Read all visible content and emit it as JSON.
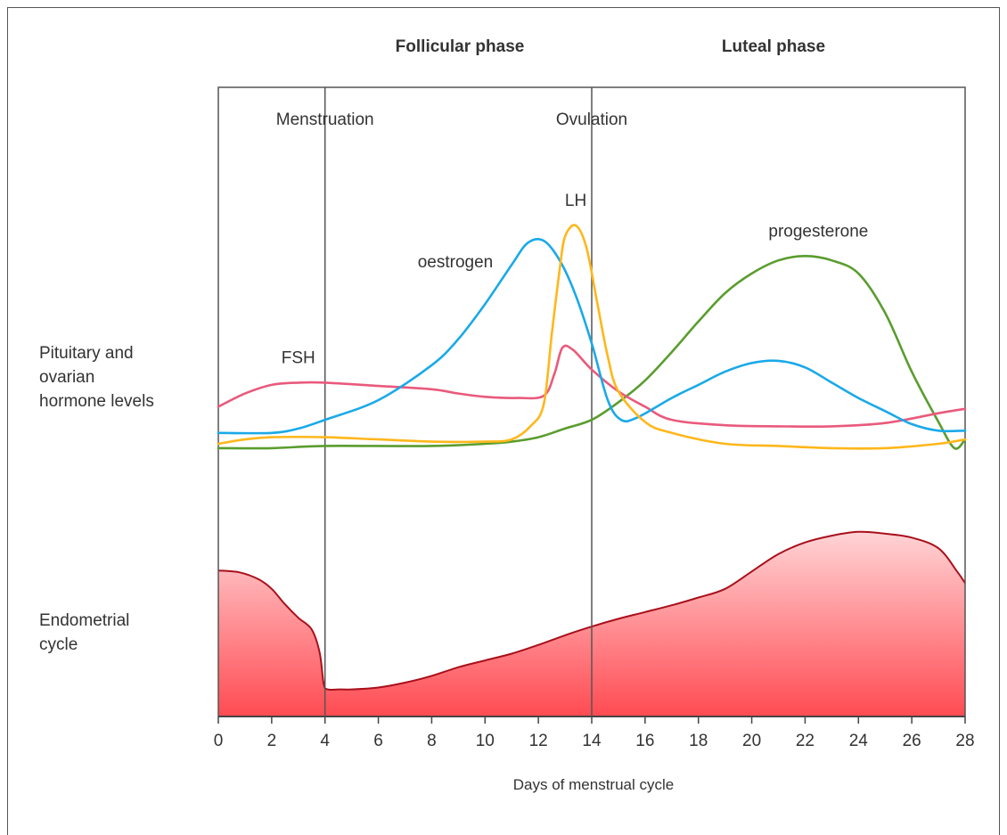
{
  "chart_data": {
    "type": "line",
    "xlabel": "Days of menstrual cycle",
    "xlim": [
      0,
      28
    ],
    "x_ticks": [
      0,
      2,
      4,
      6,
      8,
      10,
      12,
      14,
      16,
      18,
      20,
      22,
      24,
      26,
      28
    ],
    "phases": [
      "Follicular phase",
      "Luteal phase"
    ],
    "events": [
      {
        "label": "Menstruation",
        "day": 4
      },
      {
        "label": "Ovulation",
        "day": 14
      }
    ],
    "row_labels": {
      "hormones": "Pituitary and\novarian\nhormone levels",
      "endometrium": "Endometrial\ncycle"
    },
    "series": [
      {
        "name": "FSH",
        "color": "#e95a7c",
        "points": [
          [
            0,
            0.17
          ],
          [
            1,
            0.23
          ],
          [
            2,
            0.27
          ],
          [
            3,
            0.28
          ],
          [
            4,
            0.28
          ],
          [
            6,
            0.265
          ],
          [
            8,
            0.25
          ],
          [
            9,
            0.23
          ],
          [
            10,
            0.215
          ],
          [
            11.2,
            0.21
          ],
          [
            12.2,
            0.22
          ],
          [
            12.6,
            0.32
          ],
          [
            12.9,
            0.44
          ],
          [
            13.3,
            0.43
          ],
          [
            14,
            0.34
          ],
          [
            15,
            0.24
          ],
          [
            16,
            0.17
          ],
          [
            17,
            0.11
          ],
          [
            19,
            0.085
          ],
          [
            21,
            0.08
          ],
          [
            23,
            0.08
          ],
          [
            25,
            0.095
          ],
          [
            27,
            0.14
          ],
          [
            28,
            0.16
          ]
        ]
      },
      {
        "name": "LH",
        "color": "#ffb71b",
        "points": [
          [
            0,
            0.0
          ],
          [
            1,
            0.02
          ],
          [
            2,
            0.03
          ],
          [
            4,
            0.03
          ],
          [
            6,
            0.02
          ],
          [
            8,
            0.01
          ],
          [
            10,
            0.01
          ],
          [
            11,
            0.02
          ],
          [
            11.7,
            0.08
          ],
          [
            12.2,
            0.18
          ],
          [
            12.5,
            0.5
          ],
          [
            12.8,
            0.8
          ],
          [
            13,
            0.95
          ],
          [
            13.4,
            1.0
          ],
          [
            13.8,
            0.9
          ],
          [
            14.2,
            0.65
          ],
          [
            14.6,
            0.4
          ],
          [
            15,
            0.24
          ],
          [
            16,
            0.1
          ],
          [
            17,
            0.05
          ],
          [
            19,
            0.0
          ],
          [
            21,
            -0.01
          ],
          [
            23,
            -0.02
          ],
          [
            25,
            -0.02
          ],
          [
            27,
            0.0
          ],
          [
            28,
            0.02
          ]
        ]
      },
      {
        "name": "oestrogen",
        "color": "#1aa9e8",
        "points": [
          [
            0,
            0.05
          ],
          [
            2,
            0.05
          ],
          [
            3,
            0.07
          ],
          [
            4,
            0.11
          ],
          [
            6,
            0.2
          ],
          [
            8,
            0.36
          ],
          [
            9,
            0.48
          ],
          [
            10,
            0.64
          ],
          [
            11,
            0.82
          ],
          [
            11.6,
            0.92
          ],
          [
            12.2,
            0.93
          ],
          [
            12.8,
            0.84
          ],
          [
            13.4,
            0.68
          ],
          [
            14,
            0.46
          ],
          [
            14.6,
            0.2
          ],
          [
            15.1,
            0.11
          ],
          [
            15.7,
            0.12
          ],
          [
            17,
            0.21
          ],
          [
            18,
            0.27
          ],
          [
            19,
            0.33
          ],
          [
            20,
            0.37
          ],
          [
            21,
            0.38
          ],
          [
            22,
            0.35
          ],
          [
            23,
            0.28
          ],
          [
            24,
            0.21
          ],
          [
            25,
            0.15
          ],
          [
            26,
            0.09
          ],
          [
            27,
            0.06
          ],
          [
            28,
            0.06
          ]
        ]
      },
      {
        "name": "progesterone",
        "color": "#5a9d2e",
        "points": [
          [
            0,
            -0.02
          ],
          [
            2,
            -0.02
          ],
          [
            4,
            -0.01
          ],
          [
            8,
            -0.01
          ],
          [
            10,
            0.0
          ],
          [
            11,
            0.01
          ],
          [
            12,
            0.03
          ],
          [
            13,
            0.07
          ],
          [
            14,
            0.11
          ],
          [
            15,
            0.19
          ],
          [
            16,
            0.29
          ],
          [
            17,
            0.42
          ],
          [
            18,
            0.56
          ],
          [
            19,
            0.69
          ],
          [
            20,
            0.78
          ],
          [
            21,
            0.84
          ],
          [
            22,
            0.86
          ],
          [
            23,
            0.84
          ],
          [
            24,
            0.78
          ],
          [
            25,
            0.6
          ],
          [
            26,
            0.33
          ],
          [
            27,
            0.1
          ],
          [
            27.6,
            -0.02
          ],
          [
            28,
            0.02
          ]
        ]
      }
    ],
    "endometrium": {
      "color": "#a8101b",
      "points": [
        [
          0,
          0.755
        ],
        [
          0.8,
          0.745
        ],
        [
          1.5,
          0.71
        ],
        [
          2,
          0.66
        ],
        [
          2.5,
          0.58
        ],
        [
          3,
          0.51
        ],
        [
          3.5,
          0.45
        ],
        [
          3.8,
          0.33
        ],
        [
          3.95,
          0.17
        ],
        [
          4.1,
          0.14
        ],
        [
          4.5,
          0.14
        ],
        [
          5,
          0.14
        ],
        [
          6,
          0.15
        ],
        [
          7,
          0.175
        ],
        [
          8,
          0.21
        ],
        [
          9,
          0.255
        ],
        [
          10,
          0.29
        ],
        [
          11,
          0.325
        ],
        [
          12,
          0.37
        ],
        [
          13,
          0.42
        ],
        [
          14,
          0.465
        ],
        [
          15,
          0.505
        ],
        [
          16,
          0.54
        ],
        [
          17,
          0.575
        ],
        [
          18,
          0.615
        ],
        [
          19,
          0.66
        ],
        [
          20,
          0.75
        ],
        [
          21,
          0.84
        ],
        [
          22,
          0.9
        ],
        [
          23,
          0.935
        ],
        [
          24,
          0.955
        ],
        [
          25,
          0.945
        ],
        [
          26,
          0.925
        ],
        [
          27,
          0.87
        ],
        [
          27.7,
          0.75
        ],
        [
          28,
          0.69
        ]
      ]
    }
  }
}
